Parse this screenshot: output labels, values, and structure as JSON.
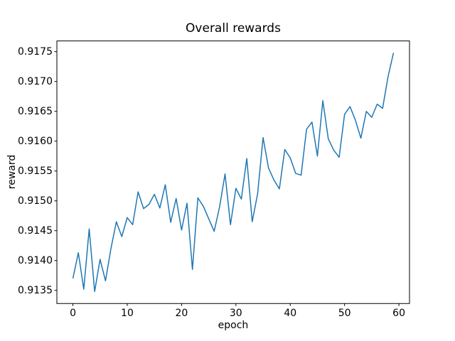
{
  "figure": {
    "background": "#ffffff",
    "frame_color": "#000000",
    "text_color": "#000000"
  },
  "chart_data": {
    "type": "line",
    "title": "Overall rewards",
    "xlabel": "epoch",
    "ylabel": "reward",
    "grid": false,
    "legend_position": "none",
    "line_color": "#1f77b4",
    "xlim": [
      -2.95,
      61.95
    ],
    "ylim": [
      0.91328,
      0.91768
    ],
    "xticks": [
      0,
      10,
      20,
      30,
      40,
      50,
      60
    ],
    "yticks": [
      0.9135,
      0.914,
      0.9145,
      0.915,
      0.9155,
      0.916,
      0.9165,
      0.917,
      0.9175
    ],
    "x": [
      0,
      1,
      2,
      3,
      4,
      5,
      6,
      7,
      8,
      9,
      10,
      11,
      12,
      13,
      14,
      15,
      16,
      17,
      18,
      19,
      20,
      21,
      22,
      23,
      24,
      25,
      26,
      27,
      28,
      29,
      30,
      31,
      32,
      33,
      34,
      35,
      36,
      37,
      38,
      39,
      40,
      41,
      42,
      43,
      44,
      45,
      46,
      47,
      48,
      49,
      50,
      51,
      52,
      53,
      54,
      55,
      56,
      57,
      58,
      59
    ],
    "series": [
      {
        "name": "reward",
        "values": [
          0.9137,
          0.91413,
          0.91352,
          0.91453,
          0.91348,
          0.91402,
          0.91366,
          0.9142,
          0.91465,
          0.9144,
          0.91472,
          0.9146,
          0.91515,
          0.91487,
          0.91494,
          0.91511,
          0.91488,
          0.91527,
          0.91464,
          0.91504,
          0.91451,
          0.91496,
          0.91385,
          0.91505,
          0.91491,
          0.9147,
          0.91449,
          0.9149,
          0.91545,
          0.9146,
          0.91521,
          0.91503,
          0.91571,
          0.91465,
          0.91512,
          0.91606,
          0.91555,
          0.91535,
          0.9152,
          0.91586,
          0.91572,
          0.91546,
          0.91543,
          0.9162,
          0.91632,
          0.91575,
          0.91668,
          0.91604,
          0.91585,
          0.91573,
          0.91645,
          0.91658,
          0.91635,
          0.91605,
          0.9165,
          0.9164,
          0.91662,
          0.91655,
          0.91708,
          0.91748
        ]
      }
    ]
  }
}
